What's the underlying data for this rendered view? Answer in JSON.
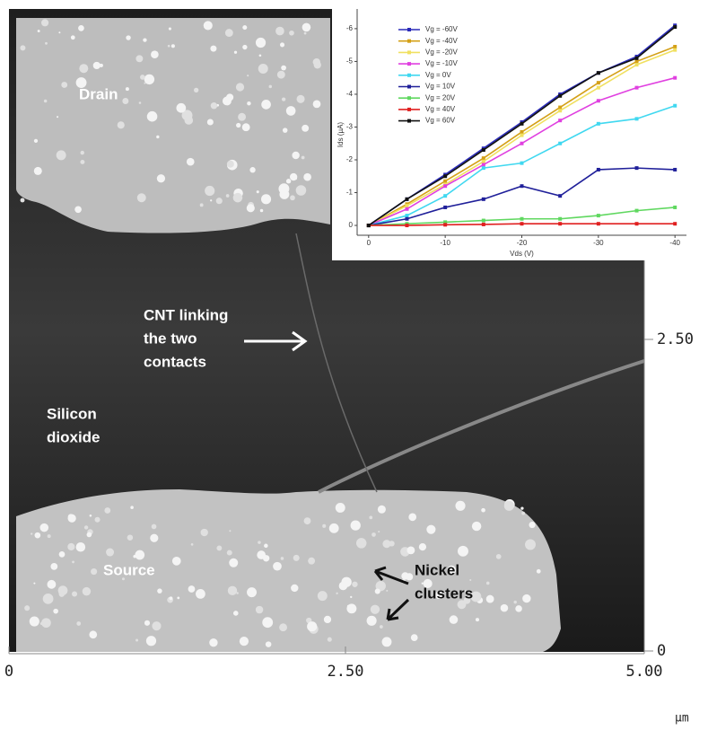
{
  "chart_data": {
    "type": "line",
    "x_label": "Vds (V)",
    "y_label": "Ids (µA)",
    "x": [
      0,
      -5,
      -10,
      -15,
      -20,
      -25,
      -30,
      -35,
      -40
    ],
    "xlim": [
      1.5,
      -41.5
    ],
    "xticks": [
      0,
      -10,
      -20,
      -30,
      -40
    ],
    "ylim": [
      0.3,
      -6.6
    ],
    "yticks": [
      0,
      -1,
      -2,
      -3,
      -4,
      -5,
      -6
    ],
    "series": [
      {
        "name": "Vg = -60V",
        "color": "#2a2ab8",
        "values": [
          0,
          -0.8,
          -1.55,
          -2.35,
          -3.15,
          -4.0,
          -4.65,
          -5.15,
          -6.1
        ]
      },
      {
        "name": "Vg = -40V",
        "color": "#d4a017",
        "values": [
          0,
          -0.65,
          -1.35,
          -2.05,
          -2.85,
          -3.6,
          -4.35,
          -5.0,
          -5.45
        ]
      },
      {
        "name": "Vg = -20V",
        "color": "#f0e060",
        "values": [
          0,
          -0.6,
          -1.25,
          -1.95,
          -2.75,
          -3.5,
          -4.2,
          -4.9,
          -5.35
        ]
      },
      {
        "name": "Vg = -10V",
        "color": "#e040e0",
        "values": [
          0,
          -0.5,
          -1.2,
          -1.85,
          -2.5,
          -3.2,
          -3.8,
          -4.2,
          -4.5
        ]
      },
      {
        "name": "Vg = 0V",
        "color": "#40d8f0",
        "values": [
          0,
          -0.3,
          -0.9,
          -1.75,
          -1.9,
          -2.5,
          -3.1,
          -3.25,
          -3.65
        ]
      },
      {
        "name": "Vg = 10V",
        "color": "#20209a",
        "values": [
          0,
          -0.2,
          -0.55,
          -0.8,
          -1.2,
          -0.9,
          -1.7,
          -1.75,
          -1.7
        ]
      },
      {
        "name": "Vg = 20V",
        "color": "#60d860",
        "values": [
          0,
          -0.05,
          -0.1,
          -0.15,
          -0.2,
          -0.2,
          -0.3,
          -0.45,
          -0.55
        ]
      },
      {
        "name": "Vg = 40V",
        "color": "#e02020",
        "values": [
          0,
          0,
          -0.02,
          -0.03,
          -0.05,
          -0.05,
          -0.05,
          -0.05,
          -0.05
        ]
      },
      {
        "name": "Vg = 60V",
        "color": "#111111",
        "values": [
          0,
          -0.8,
          -1.5,
          -2.3,
          -3.1,
          -3.95,
          -4.65,
          -5.1,
          -6.05
        ]
      }
    ]
  },
  "image": {
    "labels": [
      [
        "Drain"
      ],
      [
        "CNT linking",
        "the two",
        "contacts"
      ],
      [
        "Silicon",
        "dioxide"
      ],
      [
        "Source"
      ],
      [
        "Nickel",
        "clusters"
      ]
    ],
    "x_tick_labels": [
      "0",
      "2.50",
      "5.00"
    ],
    "y_tick_labels": [
      "2.50",
      "0"
    ],
    "unit": "µm"
  }
}
